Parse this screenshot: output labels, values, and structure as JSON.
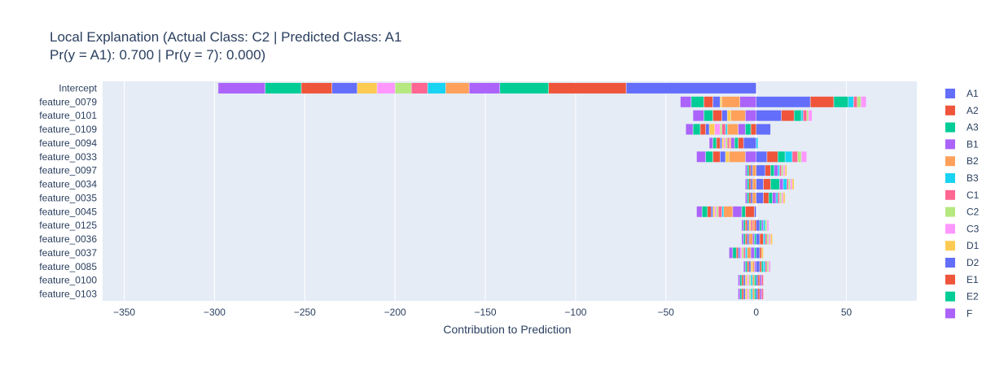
{
  "chart_data": {
    "type": "bar",
    "orientation": "horizontal",
    "barmode": "relative",
    "title": "Local Explanation (Actual Class: C2 | Predicted Class: A1",
    "subtitle": "Pr(y = A1): 0.700 | Pr(y = 7): 0.000)",
    "xlabel": "Contribution to Prediction",
    "ylabel": "",
    "xlim": [
      -362,
      89
    ],
    "x_ticks": [
      -350,
      -300,
      -250,
      -200,
      -150,
      -100,
      -50,
      0,
      50
    ],
    "x_tick_labels": [
      "−350",
      "−300",
      "−250",
      "−200",
      "−150",
      "−100",
      "−50",
      "0",
      "50"
    ],
    "grid": true,
    "legend_position": "right",
    "background": "#e5ecf6",
    "categories": [
      "Intercept",
      "feature_0079",
      "feature_0101",
      "feature_0109",
      "feature_0094",
      "feature_0033",
      "feature_0097",
      "feature_0034",
      "feature_0035",
      "feature_0045",
      "feature_0125",
      "feature_0036",
      "feature_0037",
      "feature_0085",
      "feature_0100",
      "feature_0103"
    ],
    "series": [
      {
        "name": "A1",
        "color": "#636efa",
        "values": [
          -72,
          30,
          14,
          8,
          -7,
          6,
          5,
          4,
          4,
          -1,
          2,
          2,
          2,
          2,
          1,
          1
        ]
      },
      {
        "name": "A2",
        "color": "#ef553b",
        "values": [
          -43,
          13,
          7,
          -3,
          -3,
          6,
          3,
          4,
          3,
          -5,
          -1,
          2,
          1,
          1,
          1,
          1
        ]
      },
      {
        "name": "A3",
        "color": "#00cc96",
        "values": [
          -27,
          8,
          4,
          -3,
          -2,
          4,
          2,
          5,
          2,
          -2,
          1,
          -1,
          -1,
          1,
          -1,
          -1
        ]
      },
      {
        "name": "B1",
        "color": "#ab63fa",
        "values": [
          -17,
          -9,
          -6,
          -4,
          -2,
          -6,
          2,
          2,
          2,
          -5,
          1,
          -1,
          -2,
          -1,
          1,
          1
        ]
      },
      {
        "name": "B2",
        "color": "#ffa15a",
        "values": [
          -13,
          -10,
          -8,
          -6,
          -1,
          -9,
          -2,
          -2,
          -2,
          -5,
          -1,
          -2,
          -2,
          -1,
          -1,
          -1
        ]
      },
      {
        "name": "B3",
        "color": "#19d3f3",
        "values": [
          -10,
          3,
          1,
          -1,
          1,
          4,
          1,
          2,
          1,
          -1,
          1,
          1,
          -1,
          1,
          -1,
          -1
        ]
      },
      {
        "name": "C1",
        "color": "#ff6692",
        "values": [
          -9,
          2,
          2,
          -2,
          -1,
          3,
          1,
          1,
          1,
          -2,
          -1,
          1,
          -1,
          1,
          1,
          1
        ]
      },
      {
        "name": "C2",
        "color": "#b6e880",
        "values": [
          -9,
          2,
          1,
          -1,
          -1,
          2,
          1,
          1,
          1,
          -1,
          1,
          1,
          -1,
          1,
          -1,
          -1
        ]
      },
      {
        "name": "C3",
        "color": "#ff97ff",
        "values": [
          -10,
          3,
          2,
          -3,
          -1,
          3,
          1,
          1,
          1,
          -1,
          1,
          1,
          -1,
          1,
          -1,
          -1
        ]
      },
      {
        "name": "D1",
        "color": "#fecb52",
        "values": [
          -11,
          -1,
          -2,
          -3,
          -1,
          -2,
          1,
          1,
          1,
          -1,
          -1,
          1,
          1,
          -1,
          -1,
          -1
        ]
      },
      {
        "name": "D2",
        "color": "#636efa",
        "values": [
          -14,
          -4,
          -3,
          -2,
          -1,
          -3,
          -1,
          -1,
          -1,
          -1,
          -1,
          -1,
          -1,
          -1,
          -1,
          -1
        ]
      },
      {
        "name": "E1",
        "color": "#ef553b",
        "values": [
          -17,
          -5,
          -5,
          -3,
          -2,
          -4,
          -1,
          -1,
          -1,
          -2,
          -1,
          -1,
          -1,
          -1,
          -1,
          -1
        ]
      },
      {
        "name": "E2",
        "color": "#00cc96",
        "values": [
          -20,
          -7,
          -5,
          -4,
          -2,
          -4,
          -1,
          -1,
          -1,
          -3,
          -1,
          -1,
          -2,
          -1,
          -1,
          -1
        ]
      },
      {
        "name": "F",
        "color": "#ab63fa",
        "values": [
          -26,
          -6,
          -6,
          -4,
          -2,
          -5,
          -1,
          -1,
          -1,
          -3,
          -1,
          -1,
          -2,
          -1,
          -1,
          -1
        ]
      }
    ]
  }
}
